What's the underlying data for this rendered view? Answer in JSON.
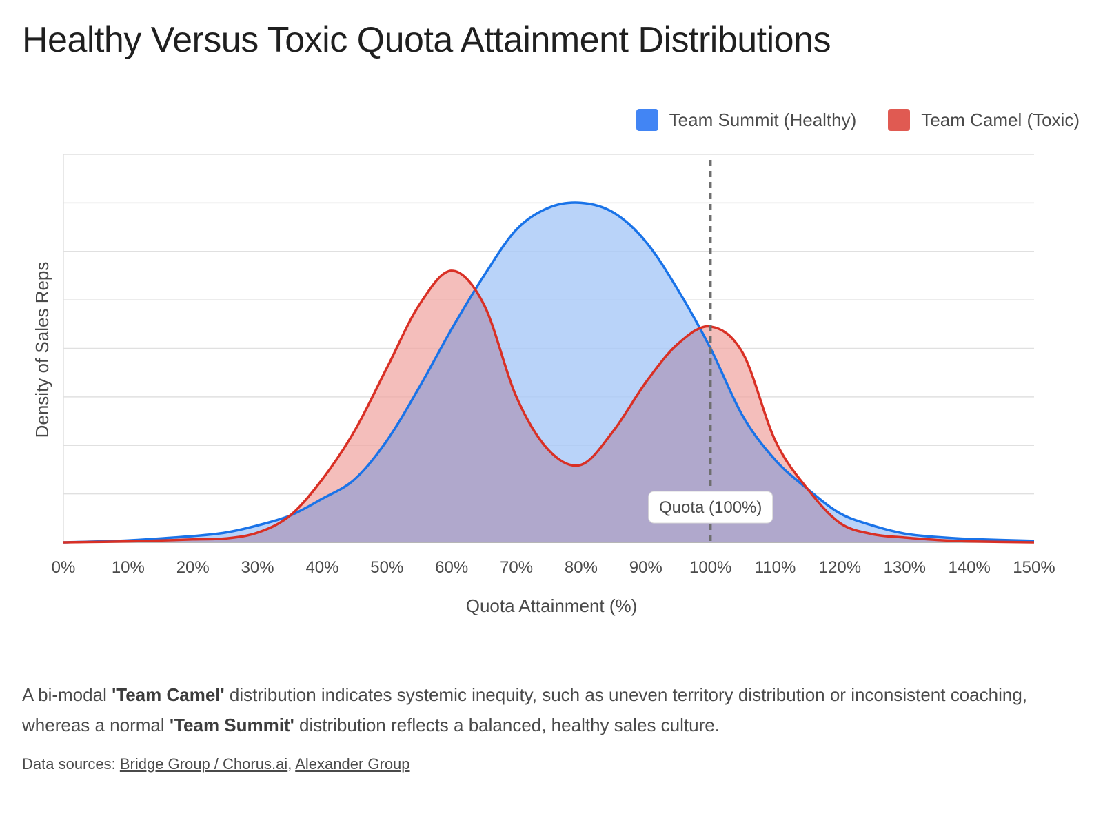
{
  "title": "Healthy Versus Toxic Quota Attainment Distributions",
  "legend": {
    "healthy_label": "Team Summit (Healthy)",
    "toxic_label": "Team Camel (Toxic)"
  },
  "colors": {
    "healthy_line": "#1a73e8",
    "healthy_fill": "#a8c8f8",
    "toxic_line": "#d93025",
    "toxic_fill": "#f0a8a4",
    "overlap_fill": "#b0a8cc",
    "healthy_swatch": "#4285f4",
    "toxic_swatch": "#e05a52",
    "quota_line": "#6e6e6e"
  },
  "chart_data": {
    "type": "area",
    "xlabel": "Quota Attainment (%)",
    "ylabel": "Density of Sales Reps",
    "xlim": [
      0,
      150
    ],
    "ylim": [
      0,
      8
    ],
    "x_tick_labels": [
      "0%",
      "10%",
      "20%",
      "30%",
      "40%",
      "50%",
      "60%",
      "70%",
      "80%",
      "90%",
      "100%",
      "110%",
      "120%",
      "130%",
      "140%",
      "150%"
    ],
    "grid": true,
    "legend_position": "top-right",
    "x": [
      0,
      10,
      20,
      25,
      30,
      35,
      40,
      45,
      50,
      55,
      60,
      65,
      70,
      75,
      80,
      85,
      90,
      95,
      100,
      105,
      110,
      115,
      120,
      125,
      130,
      135,
      140,
      150
    ],
    "series": [
      {
        "name": "Team Summit (Healthy)",
        "values": [
          0,
          0.04,
          0.13,
          0.2,
          0.35,
          0.55,
          0.9,
          1.3,
          2.1,
          3.2,
          4.4,
          5.5,
          6.45,
          6.9,
          7.0,
          6.8,
          6.2,
          5.2,
          4.0,
          2.6,
          1.7,
          1.1,
          0.6,
          0.35,
          0.18,
          0.11,
          0.07,
          0.03
        ]
      },
      {
        "name": "Team Camel (Toxic)",
        "values": [
          0,
          0.02,
          0.06,
          0.08,
          0.2,
          0.55,
          1.3,
          2.3,
          3.6,
          4.9,
          5.6,
          4.9,
          3.0,
          1.9,
          1.6,
          2.3,
          3.3,
          4.1,
          4.45,
          3.9,
          2.1,
          1.1,
          0.4,
          0.17,
          0.1,
          0.05,
          0.02,
          0
        ]
      }
    ],
    "annotations": [
      {
        "x": 100,
        "label": "Quota (100%)"
      }
    ]
  },
  "caption": {
    "p1": "A bi-modal ",
    "b1": "'Team Camel'",
    "p2": " distribution indicates systemic inequity, such as uneven territory distribution or inconsistent coaching, whereas a normal ",
    "b2": "'Team Summit'",
    "p3": " distribution reflects a balanced, healthy sales culture."
  },
  "sources": {
    "prefix": "Data sources: ",
    "link1": "Bridge Group / Chorus.ai",
    "sep": ", ",
    "link2": "Alexander Group"
  }
}
